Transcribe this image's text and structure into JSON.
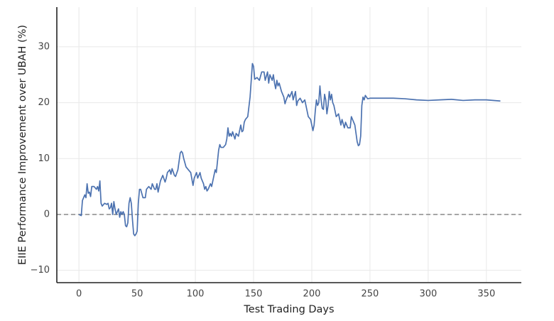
{
  "chart_data": {
    "type": "line",
    "x_label": "Test Trading Days",
    "y_label": "EIIE Performance Improvement over UBAH (%)",
    "xlim": [
      -19,
      380
    ],
    "ylim": [
      -12.2,
      37.1
    ],
    "xticks": [
      0,
      50,
      100,
      150,
      200,
      250,
      300,
      350
    ],
    "yticks": [
      {
        "value": -10,
        "label": "−10"
      },
      0,
      10,
      20,
      30
    ],
    "grid": true,
    "reference_line": {
      "value": 0,
      "color": "#888888",
      "style": "dashed"
    },
    "x": [
      0,
      2,
      3,
      5,
      6,
      7,
      8,
      9,
      10,
      11,
      13,
      15,
      16,
      17,
      18,
      19,
      20,
      22,
      24,
      25,
      26,
      27,
      28,
      29,
      30,
      31,
      32,
      33,
      34,
      35,
      36,
      37,
      38,
      39,
      40,
      41,
      42,
      43,
      44,
      45,
      46,
      47,
      48,
      49,
      50,
      51,
      52,
      53,
      55,
      57,
      58,
      60,
      62,
      63,
      65,
      66,
      67,
      68,
      70,
      72,
      74,
      75,
      76,
      78,
      79,
      80,
      82,
      83,
      85,
      87,
      88,
      89,
      90,
      92,
      94,
      96,
      98,
      99,
      100,
      101,
      102,
      104,
      105,
      107,
      108,
      109,
      110,
      111,
      113,
      114,
      116,
      117,
      118,
      120,
      121,
      122,
      124,
      126,
      127,
      128,
      129,
      130,
      131,
      132,
      134,
      135,
      137,
      139,
      140,
      141,
      142,
      143,
      145,
      147,
      148,
      149,
      150,
      151,
      153,
      155,
      157,
      159,
      160,
      162,
      163,
      164,
      166,
      167,
      168,
      169,
      170,
      171,
      172,
      174,
      176,
      177,
      178,
      180,
      181,
      183,
      184,
      186,
      187,
      188,
      190,
      192,
      194,
      195,
      197,
      199,
      201,
      202,
      203,
      204,
      205,
      206,
      207,
      208,
      209,
      210,
      211,
      212,
      213,
      214,
      215,
      216,
      217,
      218,
      219,
      221,
      223,
      225,
      226,
      228,
      229,
      231,
      233,
      234,
      235,
      237,
      239,
      240,
      241,
      242,
      243,
      244,
      245,
      246,
      248,
      250,
      260,
      270,
      280,
      290,
      300,
      310,
      320,
      330,
      340,
      350,
      362
    ],
    "series": [
      {
        "color": "#4c72b0",
        "values": [
          0,
          -0.2,
          2.5,
          3.5,
          3,
          5.5,
          3.8,
          4,
          3.2,
          5,
          5,
          4.5,
          5,
          4.2,
          6,
          2,
          1.5,
          2,
          1.8,
          2,
          1,
          1.2,
          2,
          0,
          2.3,
          1,
          0,
          0.5,
          1,
          -0.5,
          0.5,
          0,
          0.5,
          0,
          -2,
          -2.2,
          -1.5,
          2,
          3,
          2,
          -1,
          -3.5,
          -3.8,
          -3.5,
          -3,
          2,
          4.5,
          4.5,
          3,
          3,
          4.5,
          5,
          4.5,
          5.5,
          4.5,
          4.5,
          5.5,
          4,
          6,
          7,
          5.8,
          6.5,
          7.5,
          8,
          7.2,
          8.2,
          7,
          6.8,
          8,
          11,
          11.3,
          11,
          10,
          8.5,
          8,
          7.5,
          5.2,
          6.5,
          7,
          7.5,
          6.5,
          7.5,
          6.5,
          5.5,
          4.5,
          5,
          4.2,
          4.5,
          5.5,
          5,
          7,
          8,
          7.5,
          11.5,
          12.5,
          12,
          12,
          12.5,
          13.5,
          15.5,
          14,
          14.5,
          14,
          14.8,
          13.5,
          14.5,
          14,
          16,
          14.8,
          15,
          16.5,
          17,
          17.5,
          21,
          24,
          27,
          26.5,
          24.2,
          24.5,
          24,
          25.5,
          25.5,
          24,
          25.5,
          23.5,
          25,
          24,
          25,
          23.5,
          22.5,
          24,
          23,
          23.5,
          22,
          21,
          19.8,
          20.5,
          21.5,
          21,
          22,
          20.5,
          22,
          19.5,
          20.3,
          20.8,
          20,
          20.5,
          19.5,
          17.5,
          17,
          15,
          16,
          18.5,
          20.5,
          19.5,
          20,
          23,
          20.5,
          19,
          18.8,
          21.5,
          20.5,
          18,
          19.5,
          22,
          20.5,
          21.5,
          20,
          19.5,
          17.5,
          18,
          16,
          17,
          15.5,
          16.5,
          15.5,
          15.5,
          17.5,
          17,
          16,
          13,
          12.3,
          12.5,
          14,
          19.5,
          21,
          20.5,
          21.3,
          20.7,
          20.8,
          20.8,
          20.8,
          20.7,
          20.5,
          20.4,
          20.5,
          20.6,
          20.4,
          20.5,
          20.5,
          20.3
        ]
      }
    ]
  }
}
